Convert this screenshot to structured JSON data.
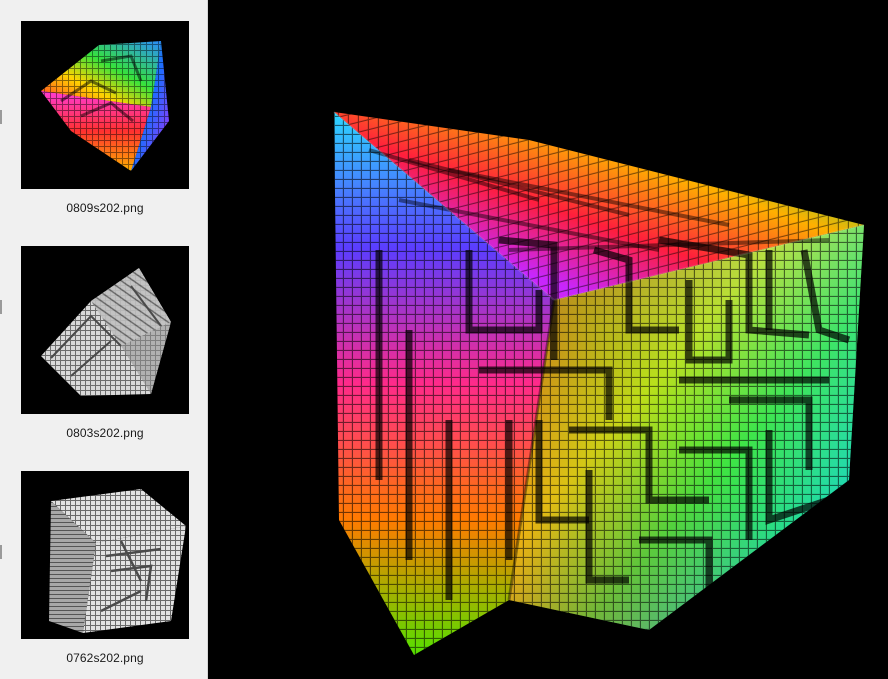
{
  "sidebar": {
    "items": [
      {
        "filename": "0809s202.png",
        "selected": true,
        "style": "rainbow"
      },
      {
        "filename": "0803s202.png",
        "selected": false,
        "style": "gray"
      },
      {
        "filename": "0762s202.png",
        "selected": false,
        "style": "gray"
      }
    ]
  },
  "viewer": {
    "image": "rainbow-maze-cube",
    "background": "#000000"
  }
}
